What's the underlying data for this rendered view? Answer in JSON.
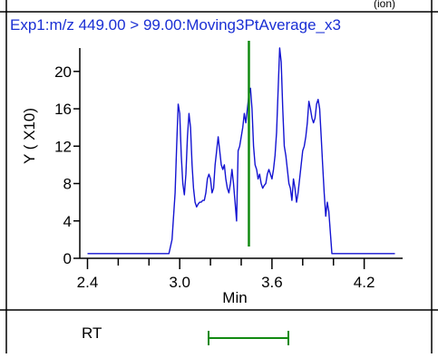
{
  "chart_data": {
    "type": "line",
    "title": "Exp1:m/z 449.00 > 99.00:Moving3PtAverage_x3",
    "top_fragment": "(ion)",
    "xlabel": "Min",
    "ylabel": "Y ( X10)",
    "xlim": [
      2.35,
      4.45
    ],
    "ylim": [
      0,
      22.5
    ],
    "x_ticks": [
      2.4,
      3.0,
      3.6,
      4.2
    ],
    "x_tick_labels": [
      "2.4",
      "3.0",
      "3.6",
      "4.2"
    ],
    "y_ticks": [
      0,
      4,
      8,
      12,
      16,
      20
    ],
    "y_tick_labels": [
      "0",
      "4",
      "8",
      "12",
      "16",
      "20"
    ],
    "grid": false,
    "marker_x": 3.45,
    "series": [
      {
        "color": "#1414d2",
        "x": [
          2.4,
          2.93,
          2.95,
          2.97,
          2.98,
          2.99,
          3.0,
          3.01,
          3.02,
          3.03,
          3.04,
          3.05,
          3.06,
          3.07,
          3.08,
          3.09,
          3.1,
          3.11,
          3.12,
          3.13,
          3.14,
          3.15,
          3.16,
          3.17,
          3.18,
          3.19,
          3.2,
          3.21,
          3.22,
          3.23,
          3.24,
          3.25,
          3.26,
          3.27,
          3.28,
          3.29,
          3.3,
          3.31,
          3.32,
          3.33,
          3.34,
          3.35,
          3.36,
          3.37,
          3.38,
          3.39,
          3.4,
          3.41,
          3.42,
          3.43,
          3.44,
          3.45,
          3.46,
          3.47,
          3.48,
          3.49,
          3.5,
          3.51,
          3.52,
          3.53,
          3.54,
          3.55,
          3.56,
          3.57,
          3.58,
          3.59,
          3.6,
          3.61,
          3.62,
          3.63,
          3.64,
          3.65,
          3.66,
          3.67,
          3.68,
          3.69,
          3.7,
          3.71,
          3.72,
          3.73,
          3.74,
          3.75,
          3.76,
          3.77,
          3.78,
          3.79,
          3.8,
          3.81,
          3.82,
          3.83,
          3.84,
          3.85,
          3.86,
          3.87,
          3.88,
          3.89,
          3.9,
          3.91,
          3.92,
          3.93,
          3.94,
          3.95,
          3.96,
          3.97,
          3.99,
          4.4
        ],
        "y": [
          0.5,
          0.5,
          2.0,
          7.0,
          12.0,
          16.5,
          15.5,
          11.0,
          8.0,
          6.8,
          9.0,
          13.0,
          15.5,
          14.0,
          10.0,
          7.5,
          6.0,
          5.5,
          5.8,
          6.0,
          6.0,
          6.2,
          6.2,
          7.0,
          8.5,
          9.0,
          8.5,
          7.0,
          7.5,
          10.0,
          11.5,
          13.0,
          11.5,
          10.0,
          9.5,
          10.0,
          8.5,
          7.5,
          7.0,
          8.0,
          9.5,
          8.0,
          6.0,
          4.0,
          11.5,
          12.0,
          13.0,
          14.0,
          15.5,
          14.5,
          16.0,
          17.5,
          18.2,
          16.0,
          12.0,
          10.0,
          9.5,
          8.5,
          9.0,
          8.0,
          7.5,
          7.8,
          8.0,
          9.0,
          9.5,
          9.0,
          8.5,
          9.5,
          11.0,
          13.5,
          18.0,
          22.5,
          21.0,
          16.0,
          12.0,
          11.0,
          9.5,
          8.0,
          7.5,
          6.2,
          8.5,
          7.5,
          6.0,
          7.0,
          8.5,
          10.0,
          11.5,
          12.0,
          13.0,
          14.5,
          16.8,
          16.0,
          15.0,
          14.5,
          15.0,
          16.5,
          17.0,
          16.0,
          13.0,
          10.0,
          7.0,
          4.5,
          6.0,
          5.0,
          0.5,
          0.5
        ]
      }
    ]
  },
  "lower_panel": {
    "label": "RT"
  },
  "colors": {
    "trace": "#1414d2",
    "marker": "#118a11",
    "frame": "#000000",
    "title_text": "#1a2fd4"
  }
}
